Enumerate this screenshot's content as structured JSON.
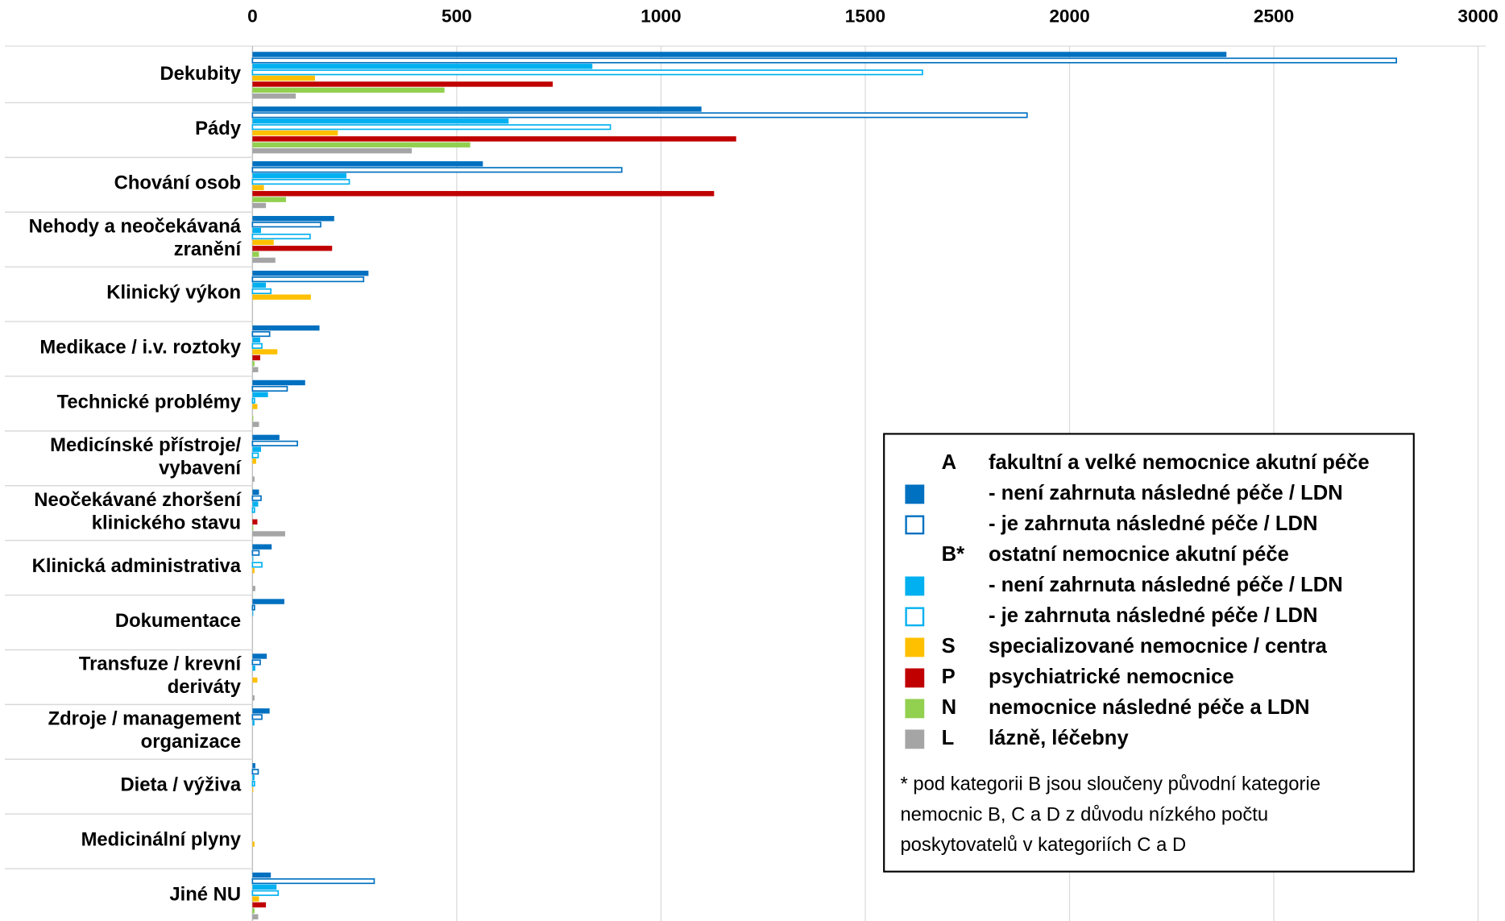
{
  "chart_data": {
    "type": "hbar",
    "categories": [
      "Dekubity",
      "Pády",
      "Chování osob",
      "Nehody a neočekávaná\nzranění",
      "Klinický výkon",
      "Medikace / i.v. roztoky",
      "Technické problémy",
      "Medicínské přístroje/\nvybavení",
      "Neočekávané zhoršení\nklinického stavu",
      "Klinická administrativa",
      "Dokumentace",
      "Transfuze / krevní\nderiváty",
      "Zdroje / management\norganizace",
      "Dieta / výživa",
      "Medicinální plyny",
      "Jiné NU"
    ],
    "xlim": [
      0,
      3000
    ],
    "xticks": [
      0,
      500,
      1000,
      1500,
      2000,
      2500,
      3000
    ],
    "grid": true,
    "legend_groups": [
      {
        "code": "A",
        "label": "fakultní a velké nemocnice akutní péče"
      },
      {
        "code": "B*",
        "label": "ostatní nemocnice akutní péče"
      }
    ],
    "series": [
      {
        "name": "- není zahrnuta následné péče / LDN",
        "color": "#0070c0",
        "outline": false,
        "values": [
          2384,
          1099,
          564,
          200,
          284,
          164,
          129,
          66,
          16,
          47,
          78,
          35,
          42,
          7,
          0,
          45
        ]
      },
      {
        "name": "- je zahrnuta následné péče / LDN",
        "color": "#0070c0",
        "outline": true,
        "values": [
          2800,
          1896,
          904,
          167,
          272,
          42,
          85,
          110,
          21,
          16,
          5,
          19,
          23,
          14,
          0,
          298
        ]
      },
      {
        "name": "- není zahrnuta následné péče / LDN",
        "color": "#00b0f0",
        "outline": false,
        "values": [
          832,
          627,
          230,
          21,
          33,
          19,
          38,
          21,
          14,
          2,
          2,
          7,
          5,
          5,
          0,
          59
        ]
      },
      {
        "name": "- je zahrnuta následné péče / LDN",
        "color": "#00b0f0",
        "outline": true,
        "values": [
          1640,
          876,
          237,
          141,
          45,
          23,
          5,
          14,
          5,
          23,
          0,
          0,
          0,
          5,
          0,
          63
        ]
      },
      {
        "code": "S",
        "name": "specializované nemocnice / centra",
        "color": "#ffc000",
        "outline": false,
        "values": [
          153,
          209,
          28,
          52,
          143,
          61,
          12,
          9,
          0,
          5,
          0,
          12,
          0,
          2,
          5,
          16
        ]
      },
      {
        "code": "P",
        "name": "psychiatrické nemocnice",
        "color": "#c00000",
        "outline": false,
        "values": [
          735,
          1184,
          1130,
          195,
          0,
          19,
          0,
          0,
          12,
          0,
          0,
          0,
          0,
          0,
          0,
          33
        ]
      },
      {
        "code": "N",
        "name": "nemocnice následné péče a LDN",
        "color": "#92d050",
        "outline": false,
        "values": [
          470,
          533,
          82,
          16,
          0,
          5,
          2,
          0,
          2,
          0,
          0,
          0,
          0,
          0,
          0,
          5
        ]
      },
      {
        "code": "L",
        "name": "lázně, léčebny",
        "color": "#a5a5a5",
        "outline": false,
        "values": [
          106,
          390,
          33,
          56,
          0,
          14,
          16,
          5,
          80,
          7,
          0,
          5,
          0,
          0,
          0,
          14
        ]
      }
    ],
    "note": [
      "* pod kategorii B jsou sloučeny původní kategorie",
      "nemocnic B, C a D z důvodu nízkého počtu",
      "poskytovatelů v kategoriích C a D"
    ]
  }
}
